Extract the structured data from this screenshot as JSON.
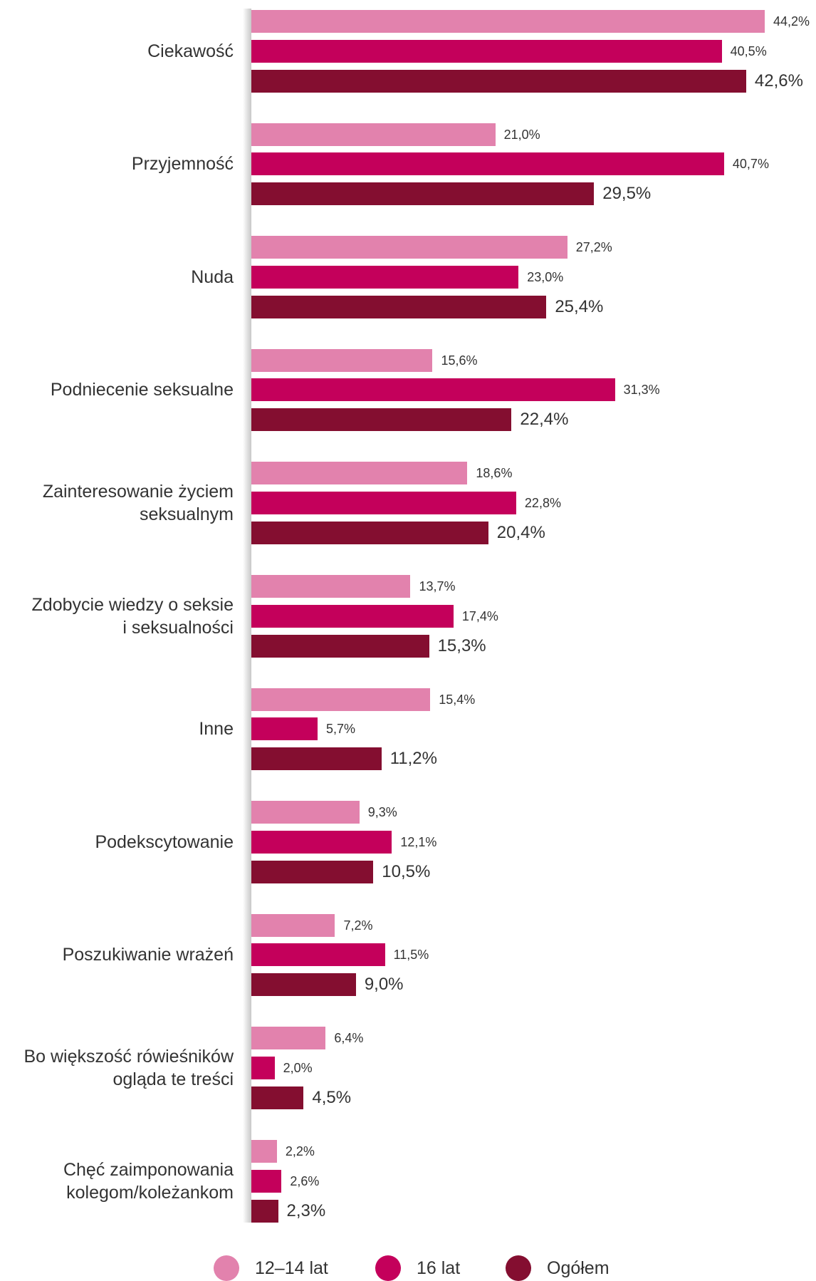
{
  "chart_data": {
    "type": "bar",
    "orientation": "horizontal",
    "categories": [
      "Ciekawość",
      "Przyjemność",
      "Nuda",
      "Podniecenie seksualne",
      "Zainteresowanie życiem\nseksualnym",
      "Zdobycie wiedzy o seksie\ni seksualności",
      "Inne",
      "Podekscytowanie",
      "Poszukiwanie wrażeń",
      "Bo większość rówieśników\nogląda te treści",
      "Chęć zaimponowania\nkolegom/koleżankom"
    ],
    "series": [
      {
        "name": "12–14 lat",
        "color": "#E282AD",
        "values": [
          44.2,
          21.0,
          27.2,
          15.6,
          18.6,
          13.7,
          15.4,
          9.3,
          7.2,
          6.4,
          2.2
        ],
        "labels": [
          "44,2%",
          "21,0%",
          "27,2%",
          "15,6%",
          "18,6%",
          "13,7%",
          "15,4%",
          "9,3%",
          "7,2%",
          "6,4%",
          "2,2%"
        ]
      },
      {
        "name": "16 lat",
        "color": "#C4005B",
        "values": [
          40.5,
          40.7,
          23.0,
          31.3,
          22.8,
          17.4,
          5.7,
          12.1,
          11.5,
          2.0,
          2.6
        ],
        "labels": [
          "40,5%",
          "40,7%",
          "23,0%",
          "31,3%",
          "22,8%",
          "17,4%",
          "5,7%",
          "12,1%",
          "11,5%",
          "2,0%",
          "2,6%"
        ]
      },
      {
        "name": "Ogółem",
        "color": "#840E30",
        "values": [
          42.6,
          29.5,
          25.4,
          22.4,
          20.4,
          15.3,
          11.2,
          10.5,
          9.0,
          4.5,
          2.3
        ],
        "labels": [
          "42,6%",
          "29,5%",
          "25,4%",
          "22,4%",
          "20,4%",
          "15,3%",
          "11,2%",
          "10,5%",
          "9,0%",
          "4,5%",
          "2,3%"
        ]
      }
    ],
    "xlim": [
      0,
      48
    ],
    "grid": false,
    "legend": "bottom"
  }
}
